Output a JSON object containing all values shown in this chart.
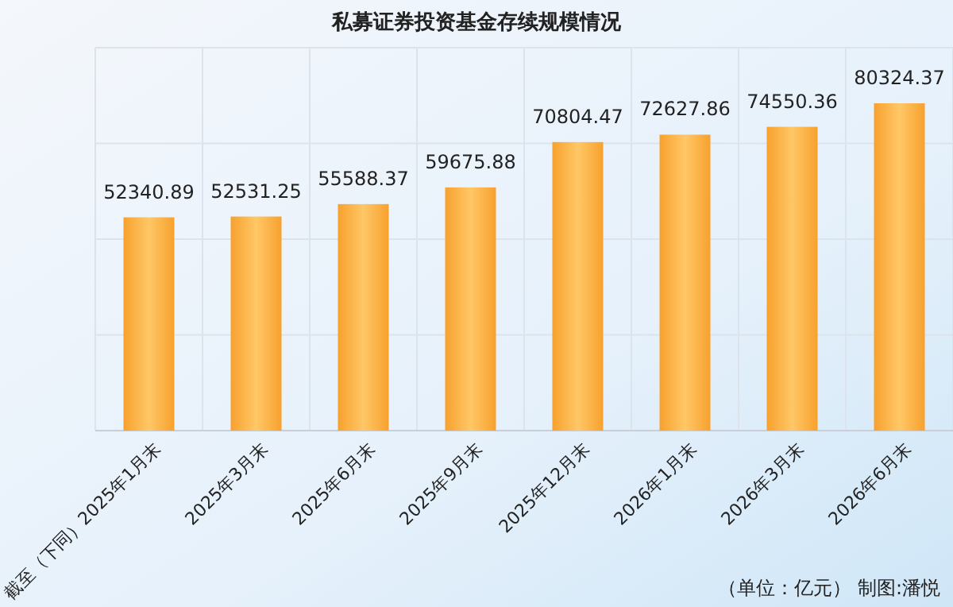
{
  "chart_data": {
    "type": "bar",
    "title": "私募证券投资基金存续规模情况",
    "categories": [
      "截至（下同）2025年1月末",
      "2025年3月末",
      "2025年6月末",
      "2025年9月末",
      "2025年12月末",
      "2026年1月末",
      "2026年3月末",
      "2026年6月末"
    ],
    "values": [
      52340.89,
      52531.25,
      55588.37,
      59675.88,
      70804.47,
      72627.86,
      74550.36,
      80324.37
    ],
    "color": "#f7a12e",
    "data_labels": true,
    "grid": true,
    "annotations": [
      "（单位：亿元）  制图:潘悦"
    ]
  }
}
